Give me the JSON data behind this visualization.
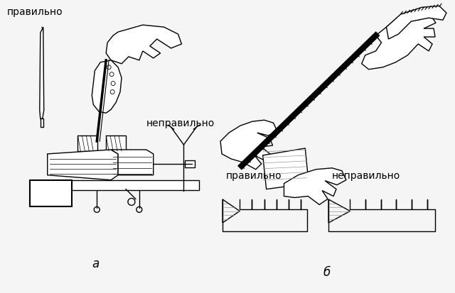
{
  "background_color": "#f0f0f0",
  "text_color": "#000000",
  "label_pravilno": "правильно",
  "label_nepravilno": "неправильно",
  "label_a": "а",
  "label_b": "б",
  "fig_width": 6.4,
  "fig_height": 4.14,
  "dpi": 100
}
